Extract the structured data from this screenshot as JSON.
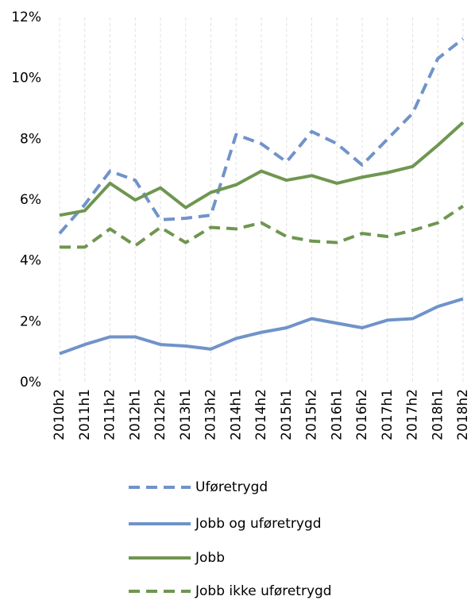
{
  "chart_data": {
    "type": "line",
    "categories": [
      "2010h2",
      "2011h1",
      "2011h2",
      "2012h1",
      "2012h2",
      "2013h1",
      "2013h2",
      "2014h1",
      "2014h2",
      "2015h1",
      "2015h2",
      "2016h1",
      "2016h2",
      "2017h1",
      "2017h2",
      "2018h1",
      "2018h2"
    ],
    "series": [
      {
        "name": "Uføretrygd",
        "color": "#7093c9",
        "dashed": true,
        "values": [
          4.9,
          5.85,
          6.95,
          6.65,
          5.35,
          5.4,
          5.5,
          8.15,
          7.85,
          7.25,
          8.25,
          7.85,
          7.15,
          8.0,
          8.85,
          10.65,
          11.3
        ]
      },
      {
        "name": "Jobb og uføretrygd",
        "color": "#7093c9",
        "dashed": false,
        "values": [
          0.95,
          1.25,
          1.5,
          1.5,
          1.25,
          1.2,
          1.1,
          1.45,
          1.65,
          1.8,
          2.1,
          1.95,
          1.8,
          2.05,
          2.1,
          2.5,
          2.75
        ]
      },
      {
        "name": "Jobb",
        "color": "#6f9650",
        "dashed": false,
        "values": [
          5.5,
          5.65,
          6.55,
          6.0,
          6.4,
          5.75,
          6.25,
          6.5,
          6.95,
          6.65,
          6.8,
          6.55,
          6.75,
          6.9,
          7.1,
          7.8,
          8.55
        ]
      },
      {
        "name": "Jobb ikke uføretrygd",
        "color": "#6f9650",
        "dashed": true,
        "values": [
          4.45,
          4.45,
          5.05,
          4.5,
          5.1,
          4.6,
          5.1,
          5.05,
          5.25,
          4.8,
          4.65,
          4.6,
          4.9,
          4.8,
          5.0,
          5.25,
          5.8
        ]
      }
    ],
    "ylim": [
      0,
      12
    ],
    "yticks": [
      {
        "value": 0,
        "label": "0%"
      },
      {
        "value": 2,
        "label": "2%"
      },
      {
        "value": 4,
        "label": "4%"
      },
      {
        "value": 6,
        "label": "6%"
      },
      {
        "value": 8,
        "label": "8%"
      },
      {
        "value": 10,
        "label": "10%"
      },
      {
        "value": 12,
        "label": "12%"
      }
    ],
    "grid": "x",
    "legend": "bottom"
  }
}
